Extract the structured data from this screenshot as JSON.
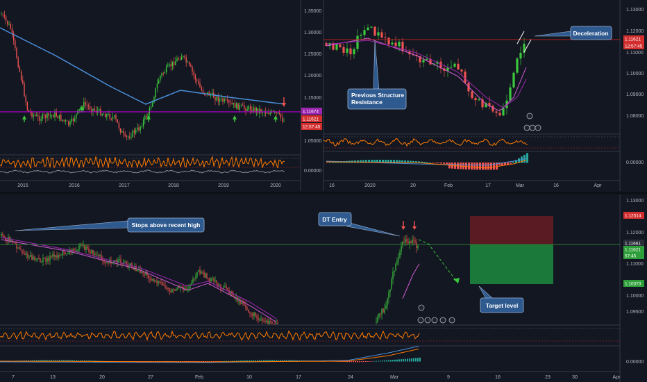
{
  "colors": {
    "background": "#131722",
    "bull": "#26a69a",
    "bull_bright": "#3cc83c",
    "bear": "#ef5350",
    "bear_dark": "#c62828",
    "ma_blue": "#4a90d9",
    "ma_pink": "#d05bd0",
    "ma_purple": "#9c27b0",
    "oscillator": "#ff7a00",
    "callout": "#2e5a8f",
    "level_line_purple": "#b000d0",
    "level_line_red": "#b71c1c",
    "entry_line_green": "#2e7d32",
    "stop_zone": "#5a1c22",
    "target_zone": "#1b7a3a"
  },
  "panels": {
    "weekly": {
      "price_axis": [
        "1.35000",
        "1.30000",
        "1.25000",
        "1.20000",
        "1.15000",
        "1.10000",
        "1.05000",
        "0.00000"
      ],
      "date_axis": [
        "2015",
        "2016",
        "2017",
        "2018",
        "2019",
        "2020"
      ],
      "tags": [
        {
          "label": "1.11674",
          "color": "#9c27b0"
        },
        {
          "label": "1.11621",
          "color": "#d32f2f"
        },
        {
          "label": "12:57:45",
          "color": "#d32f2f"
        }
      ]
    },
    "daily": {
      "price_axis": [
        "1.13000",
        "1.12000",
        "1.11000",
        "1.10000",
        "1.09000",
        "1.08000",
        "0.00000"
      ],
      "date_axis": [
        "16",
        "2020",
        "20",
        "Feb",
        "17",
        "Mar",
        "16",
        "Apr"
      ],
      "tags": [
        {
          "label": "1.11621",
          "color": "#d32f2f"
        },
        {
          "label": "12:57:45",
          "color": "#d32f2f"
        }
      ],
      "callouts": {
        "resistance": "Previous Structure Resistance",
        "deceleration": "Deceleration"
      }
    },
    "intraday": {
      "price_axis": [
        "1.13000",
        "1.12000",
        "1.11000",
        "1.10000",
        "1.09500",
        "0.00000"
      ],
      "date_axis": [
        "7",
        "13",
        "20",
        "27",
        "Feb",
        "10",
        "17",
        "24",
        "Mar",
        "9",
        "16",
        "23",
        "30",
        "Apr"
      ],
      "tags": [
        {
          "label": "1.12514",
          "color": "#d32f2f"
        },
        {
          "label": "1.11661",
          "color": "#2a2e39"
        },
        {
          "label": "1.11621",
          "color": "#2e9e3a"
        },
        {
          "label": "57:45",
          "color": "#2e9e3a"
        },
        {
          "label": "1.10373",
          "color": "#2e9e3a"
        }
      ],
      "callouts": {
        "stops": "Stops above recent high",
        "entry": "DT Entry",
        "target": "Target level"
      }
    }
  },
  "trade_levels": {
    "stop": 1.12514,
    "entry": 1.11661,
    "target": 1.10373,
    "last": 1.11621
  },
  "chart_data": [
    {
      "type": "line",
      "x": [
        "2015",
        "2016",
        "2017",
        "2018",
        "2019",
        "2020"
      ],
      "series": [
        {
          "values": [
            1.21,
            1.09,
            1.04,
            1.23,
            1.14,
            1.1
          ]
        }
      ],
      "ylim": [
        1.03,
        1.36
      ]
    },
    {
      "type": "line",
      "x": [
        "16",
        "2020",
        "20",
        "Feb",
        "17",
        "Mar"
      ],
      "series": [
        {
          "values": [
            1.113,
            1.116,
            1.109,
            1.1,
            1.08,
            1.116
          ]
        }
      ],
      "ylim": [
        1.075,
        1.131
      ]
    },
    {
      "type": "line",
      "x": [
        "7",
        "13",
        "20",
        "27",
        "Feb",
        "10",
        "17",
        "24",
        "Mar"
      ],
      "series": [
        {
          "values": [
            1.116,
            1.111,
            1.11,
            1.103,
            1.108,
            1.097,
            1.082,
            1.079,
            1.117
          ]
        }
      ],
      "ylim": [
        1.09,
        1.131
      ]
    }
  ]
}
